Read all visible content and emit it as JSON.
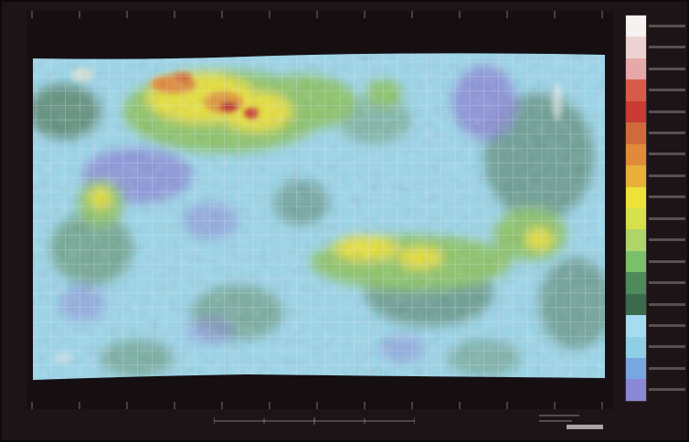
{
  "map": {
    "colors": {
      "background": "#1c1416",
      "deep": "#8a88d6",
      "low": "#8ecfe6",
      "mid_low": "#a6dcef",
      "dark_green": "#3f6a4a",
      "green": "#7fbf6a",
      "yellow_green": "#bfd84a",
      "yellow": "#e8e23a",
      "orange": "#e08a3a",
      "red": "#c03030",
      "pink": "#e0a0a0",
      "white": "#f4f0ee",
      "grid": "#e8e8ff"
    }
  },
  "legend": {
    "colors": [
      "#f6f2f0",
      "#eed2d2",
      "#e6a8a8",
      "#d85a4a",
      "#c83a32",
      "#d06a3a",
      "#e08a3a",
      "#e8b038",
      "#ece23a",
      "#d6e04a",
      "#aed46a",
      "#7cbf6a",
      "#4f8a5a",
      "#3c6a4c",
      "#a6dcef",
      "#8ecfe6",
      "#7aa6e0",
      "#8a88d6"
    ]
  }
}
